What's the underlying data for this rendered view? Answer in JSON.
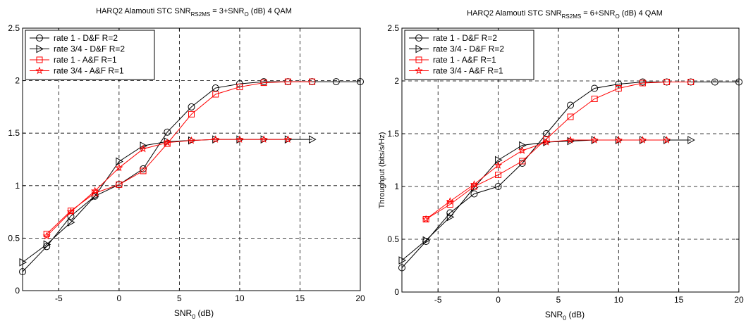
{
  "chart_data": [
    {
      "type": "line",
      "title_prefix": "HARQ2  Alamouti STC  SNR",
      "title_sub": "RS2MS",
      "title_mid": " = 3+SNR",
      "title_sub2": "O",
      "title_suffix": " (dB)     4 QAM",
      "xlabel_main": "SNR",
      "xlabel_sub": "0",
      "xlabel_unit": " (dB)",
      "ylabel": "",
      "xlim": [
        -8,
        20
      ],
      "ylim": [
        0,
        2.5
      ],
      "xticks": [
        "-5",
        "0",
        "5",
        "10",
        "15",
        "20"
      ],
      "xtick_values": [
        -5,
        0,
        5,
        10,
        15,
        20
      ],
      "yticks": [
        "0",
        "0.5",
        "1",
        "1.5",
        "2",
        "2.5"
      ],
      "ytick_values": [
        0,
        0.5,
        1,
        1.5,
        2,
        2.5
      ],
      "grid": true,
      "legend_position": "top-left",
      "series": [
        {
          "name": "rate 1 - D&F R=2",
          "color": "#000000",
          "marker": "circle",
          "x": [
            -8,
            -6,
            -4,
            -2,
            0,
            2,
            4,
            6,
            8,
            10,
            12,
            14,
            16,
            18,
            20
          ],
          "y": [
            0.18,
            0.42,
            0.71,
            0.9,
            1.01,
            1.16,
            1.51,
            1.75,
            1.93,
            1.97,
            1.99,
            1.99,
            1.99,
            1.99,
            1.99
          ]
        },
        {
          "name": "rate 3/4 - D&F R=2",
          "color": "#000000",
          "marker": "triangle-right",
          "x": [
            -8,
            -6,
            -4,
            -2,
            0,
            2,
            4,
            6,
            8,
            10,
            12,
            14,
            16
          ],
          "y": [
            0.27,
            0.44,
            0.65,
            0.9,
            1.23,
            1.38,
            1.42,
            1.43,
            1.44,
            1.44,
            1.44,
            1.44,
            1.44
          ]
        },
        {
          "name": "rate 1 - A&F R=1",
          "color": "#ff0000",
          "marker": "square",
          "x": [
            -6,
            -4,
            -2,
            0,
            2,
            4,
            6,
            8,
            10,
            12,
            14,
            16
          ],
          "y": [
            0.54,
            0.76,
            0.93,
            1.01,
            1.14,
            1.4,
            1.68,
            1.87,
            1.94,
            1.98,
            1.99,
            1.99
          ]
        },
        {
          "name": "rate 3/4 - A&F R=1",
          "color": "#ff0000",
          "marker": "star",
          "x": [
            -6,
            -4,
            -2,
            0,
            2,
            4,
            6,
            8,
            10,
            12,
            14
          ],
          "y": [
            0.52,
            0.75,
            0.95,
            1.17,
            1.35,
            1.41,
            1.43,
            1.44,
            1.44,
            1.44,
            1.44
          ]
        }
      ]
    },
    {
      "type": "line",
      "title_prefix": "HARQ2  Alamouti STC  SNR",
      "title_sub": "RS2MS",
      "title_mid": " = 6+SNR",
      "title_sub2": "O",
      "title_suffix": " (dB)     4 QAM",
      "xlabel_main": "SNR",
      "xlabel_sub": "0",
      "xlabel_unit": " (dB)",
      "ylabel": "Throughput (bits/s/Hz)",
      "xlim": [
        -8,
        20
      ],
      "ylim": [
        0,
        2.5
      ],
      "xticks": [
        "-5",
        "0",
        "5",
        "10",
        "15",
        "20"
      ],
      "xtick_values": [
        -5,
        0,
        5,
        10,
        15,
        20
      ],
      "yticks": [
        "0",
        "0.5",
        "1",
        "1.5",
        "2",
        "2.5"
      ],
      "ytick_values": [
        0,
        0.5,
        1,
        1.5,
        2,
        2.5
      ],
      "grid": true,
      "legend_position": "top-left",
      "series": [
        {
          "name": "rate 1 - D&F R=2",
          "color": "#000000",
          "marker": "circle",
          "x": [
            -8,
            -6,
            -4,
            -2,
            0,
            2,
            4,
            6,
            8,
            10,
            12,
            14,
            16,
            18,
            20
          ],
          "y": [
            0.23,
            0.48,
            0.75,
            0.93,
            1.0,
            1.22,
            1.5,
            1.77,
            1.93,
            1.97,
            1.99,
            1.99,
            1.99,
            1.99,
            1.99
          ]
        },
        {
          "name": "rate 3/4 - D&F R=2",
          "color": "#000000",
          "marker": "triangle-right",
          "x": [
            -8,
            -6,
            -4,
            -2,
            0,
            2,
            4,
            6,
            8,
            10,
            12,
            14,
            16
          ],
          "y": [
            0.3,
            0.49,
            0.71,
            0.99,
            1.25,
            1.39,
            1.42,
            1.43,
            1.44,
            1.44,
            1.44,
            1.44,
            1.44
          ]
        },
        {
          "name": "rate 1 - A&F R=1",
          "color": "#ff0000",
          "marker": "square",
          "x": [
            -6,
            -4,
            -2,
            0,
            2,
            4,
            6,
            8,
            10,
            12,
            14,
            16
          ],
          "y": [
            0.69,
            0.83,
            1.0,
            1.11,
            1.24,
            1.45,
            1.66,
            1.83,
            1.93,
            1.98,
            1.99,
            1.99
          ]
        },
        {
          "name": "rate 3/4 - A&F R=1",
          "color": "#ff0000",
          "marker": "star",
          "x": [
            -6,
            -4,
            -2,
            0,
            2,
            4,
            6,
            8,
            10,
            12,
            14
          ],
          "y": [
            0.69,
            0.86,
            1.02,
            1.2,
            1.34,
            1.42,
            1.44,
            1.44,
            1.44,
            1.44,
            1.44
          ]
        }
      ]
    }
  ]
}
